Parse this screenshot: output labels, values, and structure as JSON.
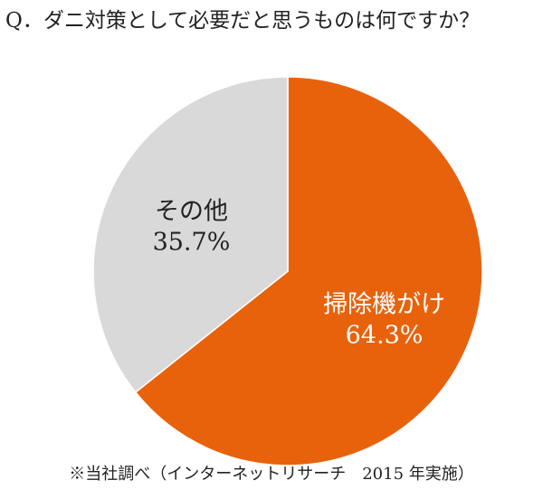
{
  "question": "Q．ダニ対策として必要だと思うものは何ですか？",
  "footnote": "※当社調べ（インターネットリサーチ　2015 年実施）",
  "chart_data": {
    "type": "pie",
    "slices": [
      {
        "label": "掃除機がけ",
        "value": 64.3,
        "value_label": "64.3%",
        "color": "#E8620C",
        "label_color": "#ffffff"
      },
      {
        "label": "その他",
        "value": 35.7,
        "value_label": "35.7%",
        "color": "#D9D9D9",
        "label_color": "#222222"
      }
    ],
    "start": "12 o'clock",
    "direction": "clockwise",
    "legend": "none"
  }
}
